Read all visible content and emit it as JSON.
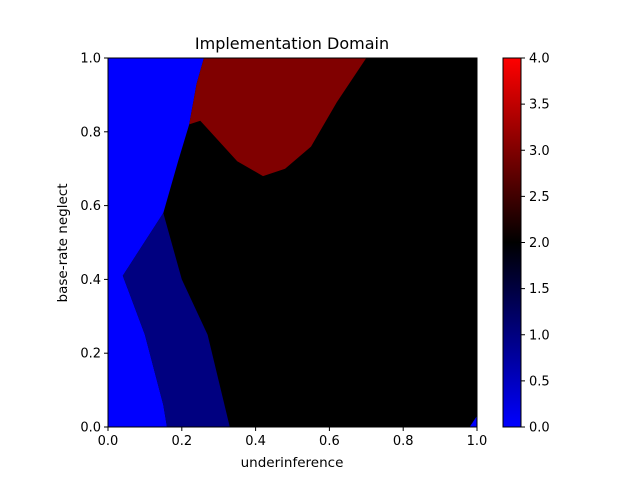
{
  "chart_data": {
    "type": "heatmap",
    "title": "Implementation Domain",
    "xlabel": "underinference",
    "ylabel": "base-rate neglect",
    "xlim": [
      0.0,
      1.0
    ],
    "ylim": [
      0.0,
      1.0
    ],
    "grid": false,
    "x_ticks": [
      "0.0",
      "0.2",
      "0.4",
      "0.6",
      "0.8",
      "1.0"
    ],
    "y_ticks": [
      "0.0",
      "0.2",
      "0.4",
      "0.6",
      "0.8",
      "1.0"
    ],
    "colorbar": {
      "range": [
        0.0,
        4.0
      ],
      "ticks": [
        "0.0",
        "0.5",
        "1.0",
        "1.5",
        "2.0",
        "2.5",
        "3.0",
        "3.5",
        "4.0"
      ],
      "colors": [
        [
          0.0,
          "#0000ff"
        ],
        [
          2.0,
          "#000000"
        ],
        [
          4.0,
          "#ff0000"
        ]
      ]
    },
    "regions": [
      {
        "value": 0,
        "polygon": [
          [
            0.0,
            0.0
          ],
          [
            0.0,
            1.0
          ],
          [
            0.26,
            1.0
          ],
          [
            0.24,
            0.93
          ],
          [
            0.22,
            0.82
          ],
          [
            0.19,
            0.72
          ],
          [
            0.15,
            0.58
          ],
          [
            0.04,
            0.41
          ],
          [
            0.1,
            0.25
          ],
          [
            0.15,
            0.06
          ],
          [
            0.16,
            0.0
          ]
        ]
      },
      {
        "value": 1,
        "polygon": [
          [
            0.16,
            0.0
          ],
          [
            0.15,
            0.06
          ],
          [
            0.1,
            0.25
          ],
          [
            0.04,
            0.41
          ],
          [
            0.15,
            0.58
          ],
          [
            0.2,
            0.4
          ],
          [
            0.27,
            0.25
          ],
          [
            0.33,
            0.0
          ]
        ]
      },
      {
        "value": 3,
        "polygon": [
          [
            0.26,
            1.0
          ],
          [
            0.7,
            1.0
          ],
          [
            0.62,
            0.88
          ],
          [
            0.55,
            0.76
          ],
          [
            0.48,
            0.7
          ],
          [
            0.42,
            0.68
          ],
          [
            0.35,
            0.72
          ],
          [
            0.25,
            0.83
          ],
          [
            0.22,
            0.82
          ],
          [
            0.24,
            0.93
          ]
        ]
      },
      {
        "value": 0,
        "polygon": [
          [
            0.98,
            0.0
          ],
          [
            1.0,
            0.0
          ],
          [
            1.0,
            0.03
          ]
        ]
      }
    ],
    "background_value": 2
  }
}
